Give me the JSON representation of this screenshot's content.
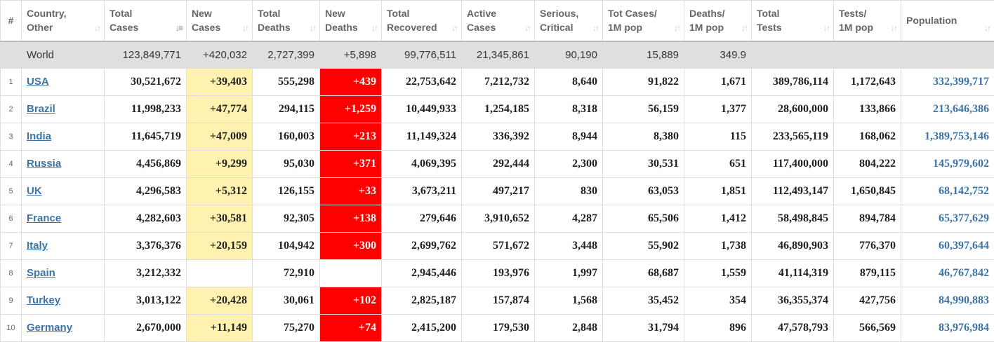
{
  "colors": {
    "new_cases_bg": "#fff2b0",
    "new_deaths_bg": "#ff0000",
    "link": "#3d74a8",
    "world_row_bg": "#dfdfdf"
  },
  "headers": [
    {
      "key": "num",
      "l1": "#",
      "l2": ""
    },
    {
      "key": "country",
      "l1": "Country,",
      "l2": "Other"
    },
    {
      "key": "total_cases",
      "l1": "Total",
      "l2": "Cases"
    },
    {
      "key": "new_cases",
      "l1": "New",
      "l2": "Cases"
    },
    {
      "key": "total_deaths",
      "l1": "Total",
      "l2": "Deaths"
    },
    {
      "key": "new_deaths",
      "l1": "New",
      "l2": "Deaths"
    },
    {
      "key": "total_recovered",
      "l1": "Total",
      "l2": "Recovered"
    },
    {
      "key": "active_cases",
      "l1": "Active",
      "l2": "Cases"
    },
    {
      "key": "serious_critical",
      "l1": "Serious,",
      "l2": "Critical"
    },
    {
      "key": "tot_cases_1m",
      "l1": "Tot Cases/",
      "l2": "1M pop"
    },
    {
      "key": "deaths_1m",
      "l1": "Deaths/",
      "l2": "1M pop"
    },
    {
      "key": "total_tests",
      "l1": "Total",
      "l2": "Tests"
    },
    {
      "key": "tests_1m",
      "l1": "Tests/",
      "l2": "1M pop"
    },
    {
      "key": "population",
      "l1": "Population",
      "l2": ""
    }
  ],
  "sort_icon": "sort-arrows-icon",
  "world": {
    "num": "",
    "country": "World",
    "total_cases": "123,849,771",
    "new_cases": "+420,032",
    "total_deaths": "2,727,399",
    "new_deaths": "+5,898",
    "total_recovered": "99,776,511",
    "active_cases": "21,345,861",
    "serious_critical": "90,190",
    "tot_cases_1m": "15,889",
    "deaths_1m": "349.9",
    "total_tests": "",
    "tests_1m": "",
    "population": ""
  },
  "rows": [
    {
      "num": "1",
      "country": "USA",
      "total_cases": "30,521,672",
      "new_cases": "+39,403",
      "total_deaths": "555,298",
      "new_deaths": "+439",
      "total_recovered": "22,753,642",
      "active_cases": "7,212,732",
      "serious_critical": "8,640",
      "tot_cases_1m": "91,822",
      "deaths_1m": "1,671",
      "total_tests": "389,786,114",
      "tests_1m": "1,172,643",
      "population": "332,399,717"
    },
    {
      "num": "2",
      "country": "Brazil",
      "total_cases": "11,998,233",
      "new_cases": "+47,774",
      "total_deaths": "294,115",
      "new_deaths": "+1,259",
      "total_recovered": "10,449,933",
      "active_cases": "1,254,185",
      "serious_critical": "8,318",
      "tot_cases_1m": "56,159",
      "deaths_1m": "1,377",
      "total_tests": "28,600,000",
      "tests_1m": "133,866",
      "population": "213,646,386"
    },
    {
      "num": "3",
      "country": "India",
      "total_cases": "11,645,719",
      "new_cases": "+47,009",
      "total_deaths": "160,003",
      "new_deaths": "+213",
      "total_recovered": "11,149,324",
      "active_cases": "336,392",
      "serious_critical": "8,944",
      "tot_cases_1m": "8,380",
      "deaths_1m": "115",
      "total_tests": "233,565,119",
      "tests_1m": "168,062",
      "population": "1,389,753,146"
    },
    {
      "num": "4",
      "country": "Russia",
      "total_cases": "4,456,869",
      "new_cases": "+9,299",
      "total_deaths": "95,030",
      "new_deaths": "+371",
      "total_recovered": "4,069,395",
      "active_cases": "292,444",
      "serious_critical": "2,300",
      "tot_cases_1m": "30,531",
      "deaths_1m": "651",
      "total_tests": "117,400,000",
      "tests_1m": "804,222",
      "population": "145,979,602"
    },
    {
      "num": "5",
      "country": "UK",
      "total_cases": "4,296,583",
      "new_cases": "+5,312",
      "total_deaths": "126,155",
      "new_deaths": "+33",
      "total_recovered": "3,673,211",
      "active_cases": "497,217",
      "serious_critical": "830",
      "tot_cases_1m": "63,053",
      "deaths_1m": "1,851",
      "total_tests": "112,493,147",
      "tests_1m": "1,650,845",
      "population": "68,142,752"
    },
    {
      "num": "6",
      "country": "France",
      "total_cases": "4,282,603",
      "new_cases": "+30,581",
      "total_deaths": "92,305",
      "new_deaths": "+138",
      "total_recovered": "279,646",
      "active_cases": "3,910,652",
      "serious_critical": "4,287",
      "tot_cases_1m": "65,506",
      "deaths_1m": "1,412",
      "total_tests": "58,498,845",
      "tests_1m": "894,784",
      "population": "65,377,629"
    },
    {
      "num": "7",
      "country": "Italy",
      "total_cases": "3,376,376",
      "new_cases": "+20,159",
      "total_deaths": "104,942",
      "new_deaths": "+300",
      "total_recovered": "2,699,762",
      "active_cases": "571,672",
      "serious_critical": "3,448",
      "tot_cases_1m": "55,902",
      "deaths_1m": "1,738",
      "total_tests": "46,890,903",
      "tests_1m": "776,370",
      "population": "60,397,644"
    },
    {
      "num": "8",
      "country": "Spain",
      "total_cases": "3,212,332",
      "new_cases": "",
      "total_deaths": "72,910",
      "new_deaths": "",
      "total_recovered": "2,945,446",
      "active_cases": "193,976",
      "serious_critical": "1,997",
      "tot_cases_1m": "68,687",
      "deaths_1m": "1,559",
      "total_tests": "41,114,319",
      "tests_1m": "879,115",
      "population": "46,767,842"
    },
    {
      "num": "9",
      "country": "Turkey",
      "total_cases": "3,013,122",
      "new_cases": "+20,428",
      "total_deaths": "30,061",
      "new_deaths": "+102",
      "total_recovered": "2,825,187",
      "active_cases": "157,874",
      "serious_critical": "1,568",
      "tot_cases_1m": "35,452",
      "deaths_1m": "354",
      "total_tests": "36,355,374",
      "tests_1m": "427,756",
      "population": "84,990,883"
    },
    {
      "num": "10",
      "country": "Germany",
      "total_cases": "2,670,000",
      "new_cases": "+11,149",
      "total_deaths": "75,270",
      "new_deaths": "+74",
      "total_recovered": "2,415,200",
      "active_cases": "179,530",
      "serious_critical": "2,848",
      "tot_cases_1m": "31,794",
      "deaths_1m": "896",
      "total_tests": "47,578,793",
      "tests_1m": "566,569",
      "population": "83,976,984"
    }
  ]
}
